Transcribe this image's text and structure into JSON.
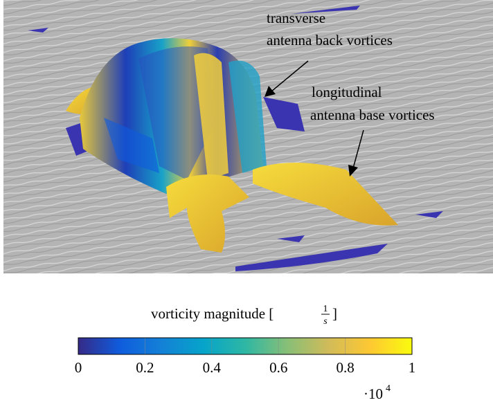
{
  "figure": {
    "annotations": [
      {
        "lines": [
          "transverse",
          "antenna back vortices"
        ]
      },
      {
        "lines": [
          "longitudinal",
          "antenna base vortices"
        ]
      }
    ],
    "colorbar": {
      "label": {
        "text": "vorticity magnitude [",
        "numerator": "1",
        "denominator": "s",
        "close": "]"
      },
      "lim": [
        0,
        1
      ],
      "ticks": [
        0,
        0.2,
        0.4,
        0.6,
        0.8,
        1
      ],
      "scale_factor": {
        "base": "·10",
        "exponent": 4
      },
      "colormap": [
        "#352a87",
        "#0f5cdd",
        "#1481d6",
        "#06a4ca",
        "#2eb7a4",
        "#87bf77",
        "#d1bb59",
        "#fec832",
        "#f9fb0e"
      ]
    }
  }
}
